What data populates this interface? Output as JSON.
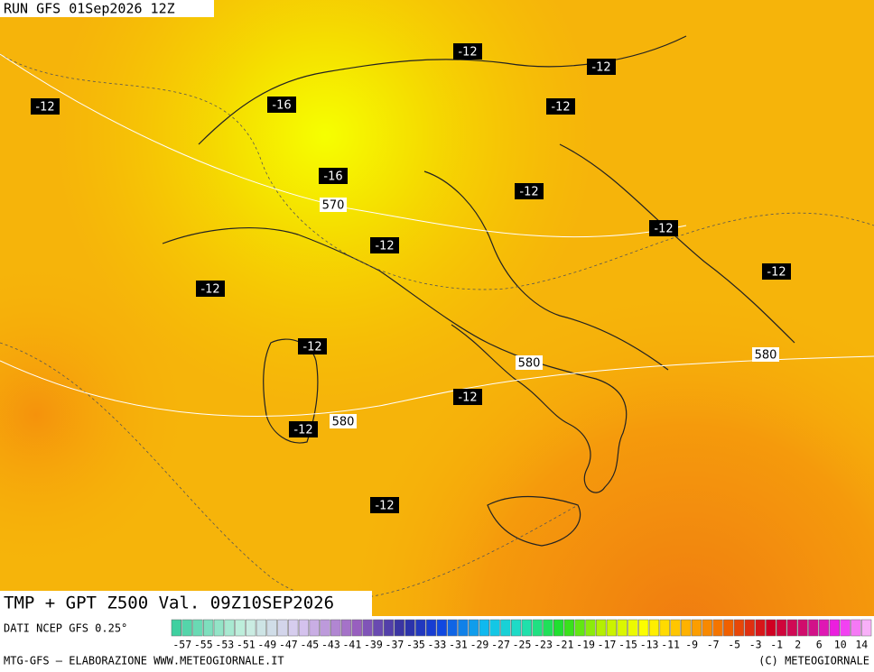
{
  "header": {
    "run": "RUN GFS 01Sep2026 12Z",
    "title": "TMP + GPT Z500 Val. 09Z10SEP2026"
  },
  "temperature_labels": [
    -12,
    -12,
    -12,
    -16,
    -12,
    -16,
    -12,
    -12,
    -12,
    -12,
    -12,
    -12,
    -12,
    -12,
    -12
  ],
  "height_labels": [
    570,
    580,
    580,
    580
  ],
  "legend": {
    "source": "DATI NCEP GFS 0.25°",
    "ticks": [
      -57,
      -55,
      -53,
      -51,
      -49,
      -47,
      -45,
      -43,
      -41,
      -39,
      -37,
      -35,
      -33,
      -31,
      -29,
      -27,
      -25,
      -23,
      -21,
      -19,
      -17,
      -15,
      -13,
      -11,
      -9,
      -7,
      -5,
      -3,
      -1,
      2,
      6,
      10,
      14
    ]
  },
  "footer": {
    "left": "MTG-GFS — ELABORAZIONE WWW.METEOGIORNALE.IT",
    "right": "(C) METEOGIORNALE"
  }
}
